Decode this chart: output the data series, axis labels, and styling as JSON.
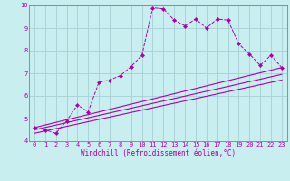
{
  "title": "",
  "xlabel": "Windchill (Refroidissement éolien,°C)",
  "bg_color": "#c8eef0",
  "grid_color": "#aad4d8",
  "line_color": "#aa00aa",
  "spine_color": "#6688aa",
  "xlim": [
    -0.5,
    23.5
  ],
  "ylim": [
    4,
    10
  ],
  "xticks": [
    0,
    1,
    2,
    3,
    4,
    5,
    6,
    7,
    8,
    9,
    10,
    11,
    12,
    13,
    14,
    15,
    16,
    17,
    18,
    19,
    20,
    21,
    22,
    23
  ],
  "yticks": [
    4,
    5,
    6,
    7,
    8,
    9,
    10
  ],
  "series1_x": [
    0,
    1,
    2,
    3,
    4,
    5,
    6,
    7,
    8,
    9,
    10,
    11,
    12,
    13,
    14,
    15,
    16,
    17,
    18,
    19,
    20,
    21,
    22,
    23
  ],
  "series1_y": [
    4.6,
    4.5,
    4.35,
    4.9,
    5.6,
    5.3,
    6.6,
    6.7,
    6.9,
    7.3,
    7.8,
    9.9,
    9.85,
    9.35,
    9.1,
    9.4,
    9.0,
    9.4,
    9.35,
    8.3,
    7.85,
    7.35,
    7.8,
    7.25
  ],
  "series2_x": [
    0,
    23
  ],
  "series2_y": [
    4.6,
    7.25
  ],
  "series3_x": [
    0,
    23
  ],
  "series3_y": [
    4.5,
    6.95
  ],
  "series4_x": [
    0,
    23
  ],
  "series4_y": [
    4.35,
    6.7
  ],
  "tick_fontsize": 5.0,
  "xlabel_fontsize": 5.5
}
